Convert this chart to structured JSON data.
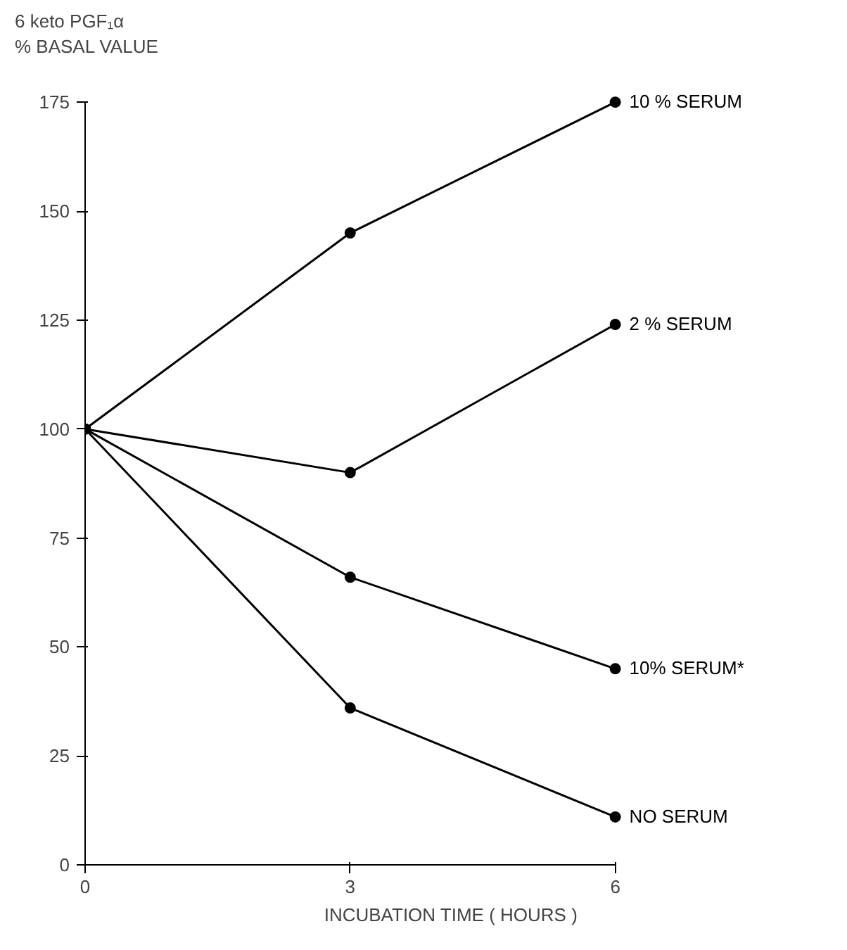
{
  "chart_data": {
    "type": "line",
    "ylabel": "6 keto PGF₁α\n% BASAL VALUE",
    "xlabel": "INCUBATION TIME ( HOURS )",
    "x": [
      0,
      3,
      6
    ],
    "series": [
      {
        "name": "10 % SERUM",
        "color": "#000000",
        "values": [
          100,
          145,
          175
        ]
      },
      {
        "name": "2 % SERUM",
        "color": "#000000",
        "values": [
          100,
          90,
          124
        ]
      },
      {
        "name": "10% SERUM*",
        "color": "#000000",
        "values": [
          100,
          66,
          45
        ]
      },
      {
        "name": "NO SERUM",
        "color": "#000000",
        "values": [
          100,
          36,
          11
        ]
      }
    ],
    "xlim": [
      0,
      6
    ],
    "ylim": [
      0,
      175
    ],
    "xticks": [
      0,
      3,
      6
    ],
    "yticks": [
      0,
      25,
      50,
      75,
      100,
      125,
      150,
      175
    ],
    "grid": false,
    "marker": "circle",
    "line_style": "solid"
  }
}
